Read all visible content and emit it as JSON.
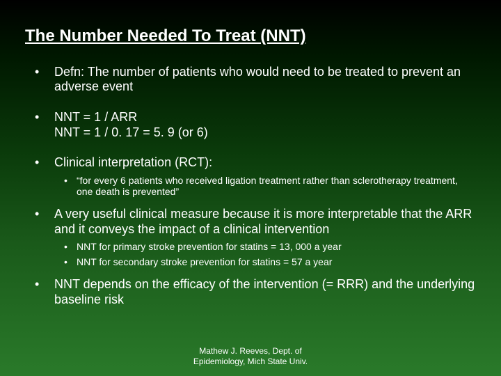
{
  "slide": {
    "title": "The Number Needed To Treat (NNT)",
    "bullets": [
      {
        "level": 1,
        "text": "Defn: The number of patients who would need to be treated to prevent an adverse event",
        "spacing": "normal"
      },
      {
        "level": 1,
        "text": "NNT =  1 /  ARR\nNNT =  1 / 0. 17 = 5. 9 (or 6)",
        "spacing": "normal"
      },
      {
        "level": 1,
        "text": "Clinical interpretation (RCT):",
        "spacing": "tight"
      },
      {
        "level": 2,
        "text": "“for every 6 patients who received ligation treatment rather than sclerotherapy treatment, one death is prevented”",
        "spacing": "normal"
      },
      {
        "level": 1,
        "text": "A very useful clinical measure because it is more interpretable that the ARR and it conveys the impact of a clinical intervention",
        "spacing": "tight",
        "after_sub": true
      },
      {
        "level": 2,
        "text": "NNT for primary stroke prevention for statins = 13, 000 a year",
        "spacing": "tight2"
      },
      {
        "level": 2,
        "text": "NNT for secondary stroke prevention for statins = 57 a year",
        "spacing": "normal"
      },
      {
        "level": 1,
        "text": "NNT depends on the efficacy of the intervention (= RRR) and the underlying baseline risk",
        "spacing": "normal",
        "after_sub": true
      }
    ],
    "footer_line1": "Mathew J. Reeves, Dept. of",
    "footer_line2": "Epidemiology, Mich State Univ."
  },
  "style": {
    "bg_gradient_stops": [
      "#000000",
      "#001800",
      "#0a3a0a",
      "#1a5a1a",
      "#2a7a2a"
    ],
    "text_color": "#ffffff",
    "title_fontsize": 24,
    "l1_fontsize": 18,
    "l2_fontsize": 14,
    "footer_fontsize": 12,
    "marker": "•"
  }
}
